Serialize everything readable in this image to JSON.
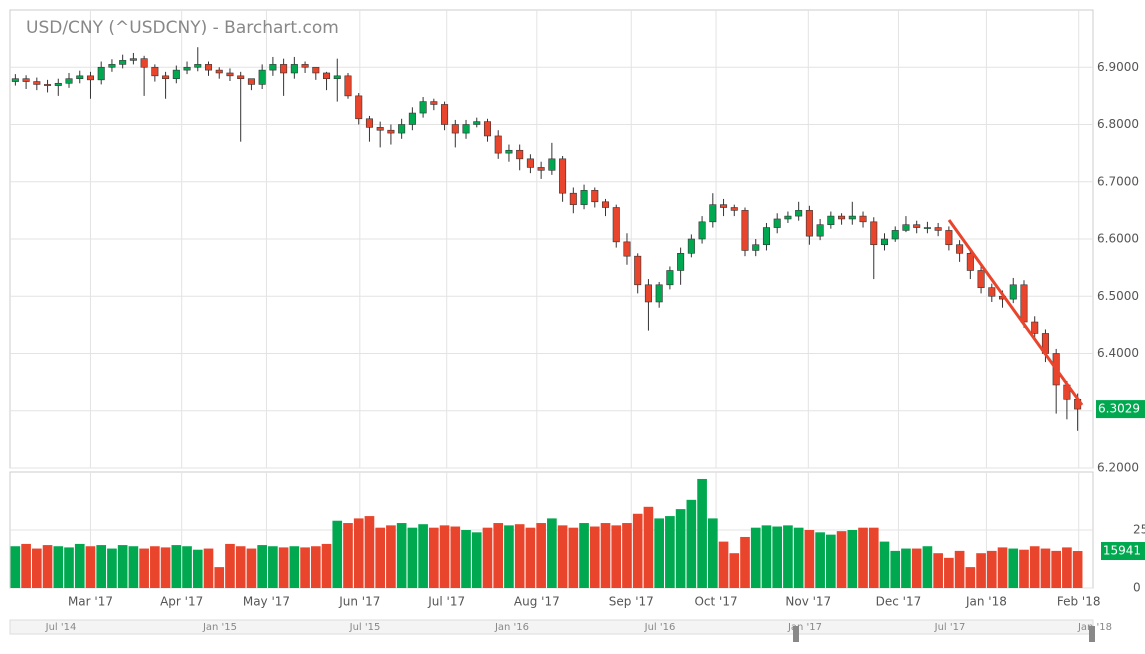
{
  "chart_data": {
    "type": "candlestick",
    "title": "USD/CNY (^USDCNY) - Barchart.com",
    "up_color": "#00a84f",
    "down_color": "#e8452c",
    "grid": true,
    "xlim": [
      -0.5,
      99.5
    ],
    "xticks": [
      {
        "value": 7.0,
        "label": "Mar '17"
      },
      {
        "value": 15.5,
        "label": "Apr '17"
      },
      {
        "value": 23.4,
        "label": "May '17"
      },
      {
        "value": 32.1,
        "label": "Jun '17"
      },
      {
        "value": 40.2,
        "label": "Jul '17"
      },
      {
        "value": 48.6,
        "label": "Aug '17"
      },
      {
        "value": 57.4,
        "label": "Sep '17"
      },
      {
        "value": 65.3,
        "label": "Oct '17"
      },
      {
        "value": 73.9,
        "label": "Nov '17"
      },
      {
        "value": 82.3,
        "label": "Dec '17"
      },
      {
        "value": 90.5,
        "label": "Jan '18"
      },
      {
        "value": 99.1,
        "label": "Feb '18"
      }
    ],
    "ylim": [
      6.2,
      7.0
    ],
    "yticks": [
      {
        "value": 6.2,
        "label": "6.2000"
      },
      {
        "value": 6.3,
        "label": "6.3000"
      },
      {
        "value": 6.4,
        "label": "6.4000"
      },
      {
        "value": 6.5,
        "label": "6.5000"
      },
      {
        "value": 6.6,
        "label": "6.6000"
      },
      {
        "value": 6.7,
        "label": "6.7000"
      },
      {
        "value": 6.8,
        "label": "6.8000"
      },
      {
        "value": 6.9,
        "label": "6.9000"
      }
    ],
    "y2lim": [
      0,
      50000
    ],
    "y2ticks": [
      0,
      25000
    ],
    "open": [
      6.875,
      6.88,
      6.875,
      6.87,
      6.868,
      6.872,
      6.88,
      6.885,
      6.878,
      6.9,
      6.905,
      6.912,
      6.915,
      6.9,
      6.885,
      6.88,
      6.895,
      6.9,
      6.905,
      6.895,
      6.89,
      6.885,
      6.88,
      6.87,
      6.895,
      6.905,
      6.89,
      6.905,
      6.9,
      6.89,
      6.88,
      6.885,
      6.85,
      6.81,
      6.795,
      6.79,
      6.785,
      6.8,
      6.82,
      6.84,
      6.835,
      6.8,
      6.785,
      6.8,
      6.805,
      6.78,
      6.75,
      6.755,
      6.74,
      6.725,
      6.72,
      6.74,
      6.68,
      6.66,
      6.685,
      6.665,
      6.655,
      6.595,
      6.57,
      6.52,
      6.49,
      6.52,
      6.545,
      6.575,
      6.6,
      6.63,
      6.66,
      6.655,
      6.65,
      6.58,
      6.59,
      6.62,
      6.635,
      6.64,
      6.65,
      6.605,
      6.625,
      6.64,
      6.635,
      6.64,
      6.63,
      6.59,
      6.6,
      6.615,
      6.625,
      6.62,
      6.62,
      6.615,
      6.59,
      6.575,
      6.545,
      6.515,
      6.5,
      6.495,
      6.52,
      6.455,
      6.435,
      6.4,
      6.345,
      6.32
    ],
    "high": [
      6.888,
      6.886,
      6.882,
      6.878,
      6.88,
      6.89,
      6.894,
      6.892,
      6.91,
      6.914,
      6.922,
      6.925,
      6.92,
      6.905,
      6.892,
      6.903,
      6.91,
      6.935,
      6.91,
      6.9,
      6.898,
      6.892,
      6.88,
      6.905,
      6.918,
      6.915,
      6.918,
      6.91,
      6.9,
      6.892,
      6.915,
      6.89,
      6.855,
      6.815,
      6.805,
      6.8,
      6.81,
      6.83,
      6.848,
      6.845,
      6.84,
      6.808,
      6.808,
      6.812,
      6.81,
      6.79,
      6.765,
      6.765,
      6.748,
      6.735,
      6.768,
      6.745,
      6.69,
      6.695,
      6.69,
      6.67,
      6.66,
      6.61,
      6.575,
      6.53,
      6.525,
      6.552,
      6.585,
      6.608,
      6.64,
      6.68,
      6.67,
      6.66,
      6.655,
      6.6,
      6.628,
      6.645,
      6.648,
      6.665,
      6.658,
      6.635,
      6.648,
      6.645,
      6.665,
      6.648,
      6.638,
      6.61,
      6.622,
      6.64,
      6.632,
      6.63,
      6.628,
      6.622,
      6.598,
      6.582,
      6.552,
      6.522,
      6.51,
      6.532,
      6.528,
      6.465,
      6.442,
      6.408,
      6.352,
      6.33
    ],
    "low": [
      6.868,
      6.862,
      6.86,
      6.856,
      6.85,
      6.864,
      6.872,
      6.845,
      6.87,
      6.892,
      6.898,
      6.905,
      6.85,
      6.875,
      6.845,
      6.872,
      6.888,
      6.893,
      6.885,
      6.88,
      6.876,
      6.77,
      6.86,
      6.862,
      6.885,
      6.85,
      6.88,
      6.89,
      6.878,
      6.86,
      6.84,
      6.845,
      6.8,
      6.77,
      6.76,
      6.765,
      6.775,
      6.79,
      6.812,
      6.825,
      6.79,
      6.76,
      6.775,
      6.795,
      6.77,
      6.74,
      6.735,
      6.72,
      6.715,
      6.705,
      6.712,
      6.665,
      6.645,
      6.652,
      6.655,
      6.64,
      6.585,
      6.555,
      6.505,
      6.44,
      6.48,
      6.512,
      6.52,
      6.568,
      6.592,
      6.62,
      6.64,
      6.64,
      6.57,
      6.57,
      6.58,
      6.61,
      6.628,
      6.632,
      6.59,
      6.598,
      6.618,
      6.625,
      6.625,
      6.62,
      6.53,
      6.58,
      6.595,
      6.612,
      6.61,
      6.61,
      6.605,
      6.58,
      6.56,
      6.53,
      6.505,
      6.49,
      6.48,
      6.488,
      6.445,
      6.425,
      6.385,
      6.295,
      6.285,
      6.265
    ],
    "close": [
      6.88,
      6.875,
      6.87,
      6.868,
      6.872,
      6.88,
      6.885,
      6.878,
      6.9,
      6.905,
      6.912,
      6.915,
      6.9,
      6.885,
      6.88,
      6.895,
      6.9,
      6.905,
      6.895,
      6.89,
      6.885,
      6.88,
      6.87,
      6.895,
      6.905,
      6.89,
      6.905,
      6.9,
      6.89,
      6.88,
      6.885,
      6.85,
      6.81,
      6.795,
      6.79,
      6.785,
      6.8,
      6.82,
      6.84,
      6.835,
      6.8,
      6.785,
      6.8,
      6.805,
      6.78,
      6.75,
      6.755,
      6.74,
      6.725,
      6.72,
      6.74,
      6.68,
      6.66,
      6.685,
      6.665,
      6.655,
      6.595,
      6.57,
      6.52,
      6.49,
      6.52,
      6.545,
      6.575,
      6.6,
      6.63,
      6.66,
      6.655,
      6.65,
      6.58,
      6.59,
      6.62,
      6.635,
      6.64,
      6.65,
      6.605,
      6.625,
      6.64,
      6.635,
      6.64,
      6.63,
      6.59,
      6.6,
      6.615,
      6.625,
      6.62,
      6.62,
      6.615,
      6.59,
      6.575,
      6.545,
      6.515,
      6.5,
      6.495,
      6.52,
      6.455,
      6.435,
      6.4,
      6.345,
      6.32,
      6.3029
    ],
    "volume": [
      18000,
      19000,
      17000,
      18500,
      18000,
      17500,
      19000,
      18000,
      18500,
      17000,
      18500,
      18000,
      17000,
      18000,
      17500,
      18500,
      18000,
      16500,
      17000,
      9000,
      19000,
      18000,
      17000,
      18500,
      18000,
      17500,
      18000,
      17500,
      18000,
      19000,
      29000,
      28000,
      30000,
      31000,
      26000,
      27000,
      28000,
      26000,
      27500,
      26000,
      27000,
      26500,
      25000,
      24000,
      26000,
      28000,
      27000,
      27500,
      26000,
      28000,
      30000,
      27000,
      26000,
      28000,
      26500,
      28000,
      27000,
      28000,
      32000,
      35000,
      30000,
      31000,
      34000,
      38000,
      47000,
      30000,
      20000,
      15000,
      22000,
      26000,
      27000,
      26500,
      27000,
      26000,
      25000,
      24000,
      23000,
      24500,
      25000,
      26000,
      26000,
      20000,
      16000,
      17000,
      17000,
      18000,
      15000,
      13000,
      16000,
      9000,
      15000,
      16000,
      17500,
      17000,
      16500,
      18000,
      17000,
      16000,
      17500,
      15941
    ],
    "navigator_labels": [
      "Jul '14",
      "Jan '15",
      "Jul '15",
      "Jan '16",
      "Jul '16",
      "Jan '17",
      "Jul '17",
      "Jan '18"
    ]
  }
}
